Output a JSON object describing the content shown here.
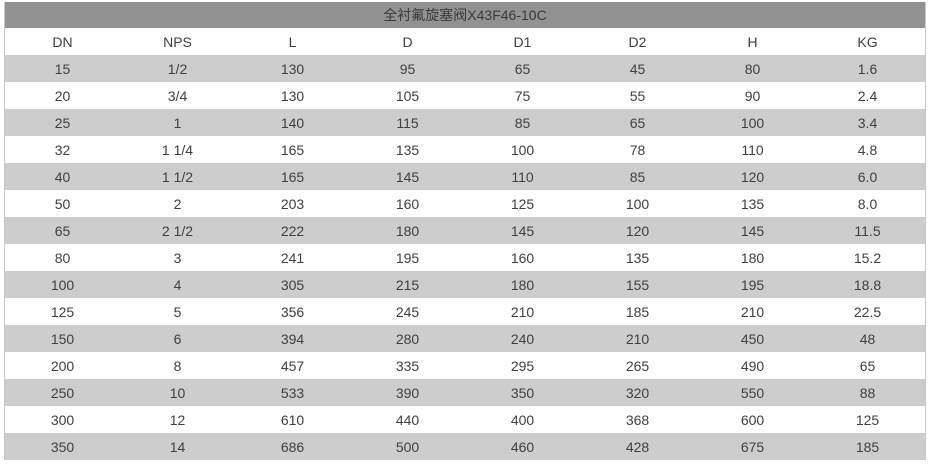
{
  "colors": {
    "title_bar_bg": "#929292",
    "title_text": "#3a3a3a",
    "stripe_bg": "#cdcdcd",
    "body_text": "#404040",
    "outer_border": "#c9c9c9",
    "row_white": "#ffffff"
  },
  "chart_data": {
    "type": "table",
    "title": "全衬氟旋塞阀X43F46-10C",
    "columns": [
      "DN",
      "NPS",
      "L",
      "D",
      "D1",
      "D2",
      "H",
      "KG"
    ],
    "rows": [
      [
        "15",
        "1/2",
        "130",
        "95",
        "65",
        "45",
        "80",
        "1.6"
      ],
      [
        "20",
        "3/4",
        "130",
        "105",
        "75",
        "55",
        "90",
        "2.4"
      ],
      [
        "25",
        "1",
        "140",
        "115",
        "85",
        "65",
        "100",
        "3.4"
      ],
      [
        "32",
        "1 1/4",
        "165",
        "135",
        "100",
        "78",
        "110",
        "4.8"
      ],
      [
        "40",
        "1 1/2",
        "165",
        "145",
        "110",
        "85",
        "120",
        "6.0"
      ],
      [
        "50",
        "2",
        "203",
        "160",
        "125",
        "100",
        "135",
        "8.0"
      ],
      [
        "65",
        "2 1/2",
        "222",
        "180",
        "145",
        "120",
        "145",
        "11.5"
      ],
      [
        "80",
        "3",
        "241",
        "195",
        "160",
        "135",
        "180",
        "15.2"
      ],
      [
        "100",
        "4",
        "305",
        "215",
        "180",
        "155",
        "195",
        "18.8"
      ],
      [
        "125",
        "5",
        "356",
        "245",
        "210",
        "185",
        "210",
        "22.5"
      ],
      [
        "150",
        "6",
        "394",
        "280",
        "240",
        "210",
        "450",
        "48"
      ],
      [
        "200",
        "8",
        "457",
        "335",
        "295",
        "265",
        "490",
        "65"
      ],
      [
        "250",
        "10",
        "533",
        "390",
        "350",
        "320",
        "550",
        "88"
      ],
      [
        "300",
        "12",
        "610",
        "440",
        "400",
        "368",
        "600",
        "125"
      ],
      [
        "350",
        "14",
        "686",
        "500",
        "460",
        "428",
        "675",
        "185"
      ]
    ]
  }
}
